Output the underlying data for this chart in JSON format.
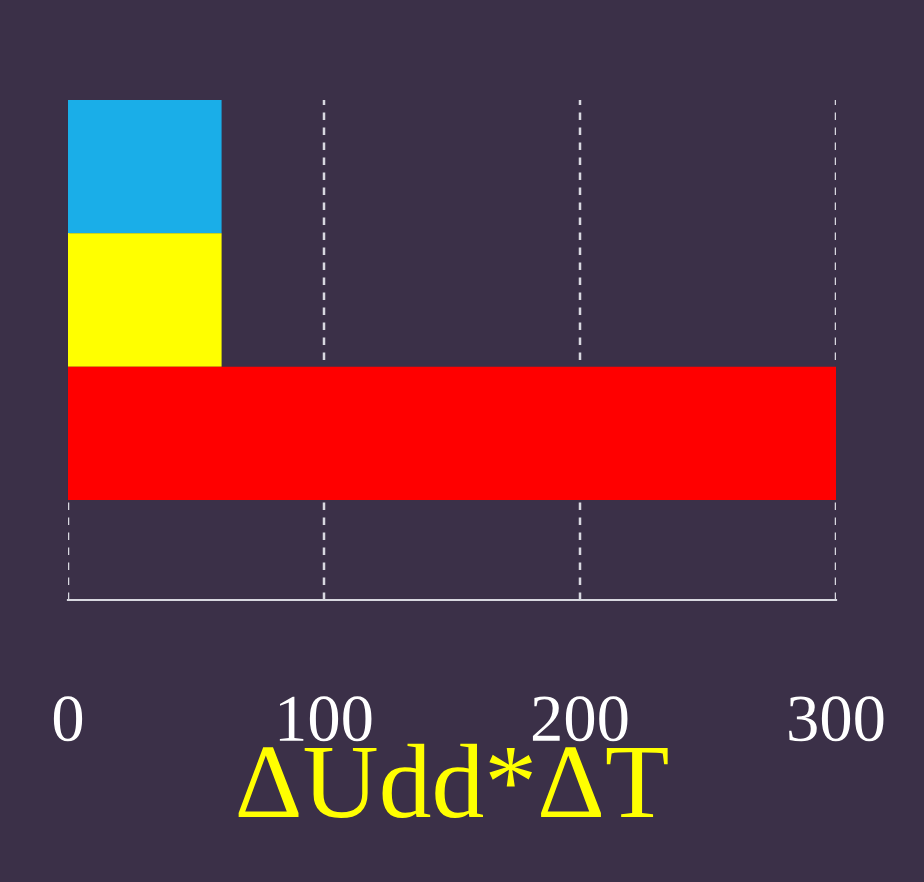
{
  "chart_data": {
    "type": "bar",
    "orientation": "horizontal",
    "categories": [
      null,
      null,
      null
    ],
    "values": [
      60,
      60,
      300
    ],
    "colors": [
      "#1aaee8",
      "#ffff00",
      "#ff0000"
    ],
    "xlabel": "ΔUdd*ΔT",
    "xlim": [
      0,
      300
    ],
    "xticks": [
      0,
      100,
      200,
      300
    ],
    "grid": "x"
  }
}
